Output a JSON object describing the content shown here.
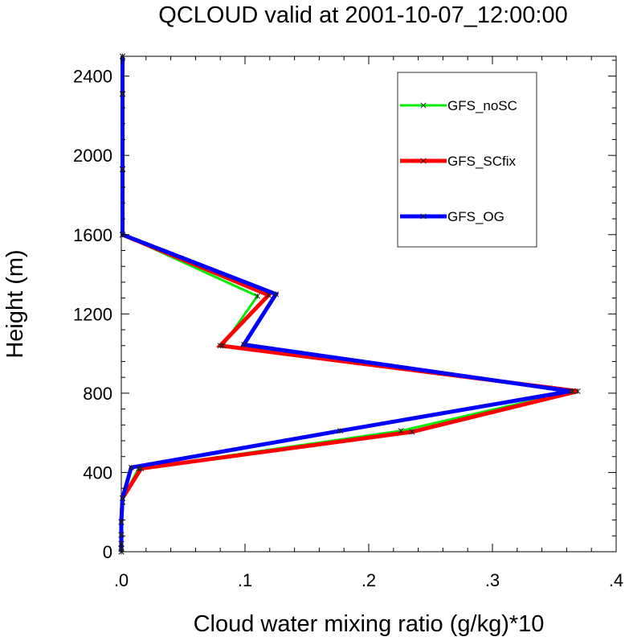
{
  "chart_data": {
    "type": "line",
    "title": "QCLOUD valid at 2001-10-07_12:00:00",
    "xlabel": "Cloud water mixing ratio (g/kg)*10",
    "ylabel": "Height (m)",
    "xlim": [
      0,
      0.4
    ],
    "ylim": [
      0,
      2500
    ],
    "x_ticks": [
      0,
      0.1,
      0.2,
      0.3,
      0.4
    ],
    "x_tick_labels": [
      ".0",
      ".1",
      ".2",
      ".3",
      ".4"
    ],
    "y_ticks": [
      0,
      400,
      800,
      1200,
      1600,
      2000,
      2400
    ],
    "y_tick_labels": [
      "0",
      "400",
      "800",
      "1200",
      "1600",
      "2000",
      "2400"
    ],
    "grid": false,
    "legend_position": "top-right",
    "series": [
      {
        "name": "GFS_noSC",
        "color": "#00ee00",
        "width": 3,
        "points": [
          [
            0.001,
            2500
          ],
          [
            0.001,
            2310
          ],
          [
            0.001,
            1930
          ],
          [
            0.001,
            1600
          ],
          [
            0.11,
            1290
          ],
          [
            0.082,
            1040
          ],
          [
            0.365,
            810
          ],
          [
            0.226,
            610
          ],
          [
            0.014,
            420
          ],
          [
            0.001,
            270
          ],
          [
            0,
            150
          ],
          [
            0,
            85
          ],
          [
            0,
            40
          ],
          [
            0,
            15
          ],
          [
            0,
            0
          ]
        ]
      },
      {
        "name": "GFS_SCfix",
        "color": "#ff0000",
        "width": 5,
        "points": [
          [
            0.001,
            2500
          ],
          [
            0.001,
            2310
          ],
          [
            0.001,
            1930
          ],
          [
            0.001,
            1600
          ],
          [
            0.119,
            1295
          ],
          [
            0.08,
            1040
          ],
          [
            0.369,
            810
          ],
          [
            0.235,
            605
          ],
          [
            0.016,
            420
          ],
          [
            0.001,
            270
          ],
          [
            0,
            150
          ],
          [
            0,
            85
          ],
          [
            0,
            40
          ],
          [
            0,
            15
          ],
          [
            0,
            0
          ]
        ]
      },
      {
        "name": "GFS_OG",
        "color": "#0000ff",
        "width": 5,
        "points": [
          [
            0.001,
            2500
          ],
          [
            0.001,
            2310
          ],
          [
            0.001,
            1930
          ],
          [
            0.001,
            1600
          ],
          [
            0.125,
            1300
          ],
          [
            0.099,
            1045
          ],
          [
            0.363,
            810
          ],
          [
            0.177,
            610
          ],
          [
            0.008,
            425
          ],
          [
            0.001,
            270
          ],
          [
            0,
            150
          ],
          [
            0,
            85
          ],
          [
            0,
            40
          ],
          [
            0,
            15
          ],
          [
            0,
            0
          ]
        ]
      }
    ]
  }
}
